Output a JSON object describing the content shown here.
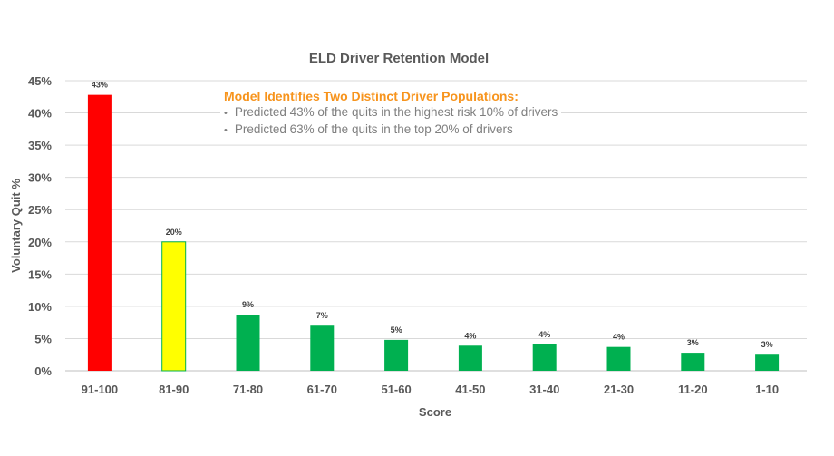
{
  "chart_data": {
    "type": "bar",
    "title": "ELD Driver Retention Model",
    "xlabel": "Score",
    "ylabel": "Voluntary Quit %",
    "categories": [
      "91-100",
      "81-90",
      "71-80",
      "61-70",
      "51-60",
      "41-50",
      "31-40",
      "21-30",
      "11-20",
      "1-10"
    ],
    "values": [
      42.8,
      20.0,
      8.7,
      7.0,
      4.8,
      3.9,
      4.1,
      3.7,
      2.8,
      2.5
    ],
    "data_labels": [
      "43%",
      "20%",
      "9%",
      "7%",
      "5%",
      "4%",
      "4%",
      "4%",
      "3%",
      "3%"
    ],
    "bar_colors": [
      "#ff0000",
      "#ffff00",
      "#00b050",
      "#00b050",
      "#00b050",
      "#00b050",
      "#00b050",
      "#00b050",
      "#00b050",
      "#00b050"
    ],
    "yticks": [
      "0%",
      "5%",
      "10%",
      "15%",
      "20%",
      "25%",
      "30%",
      "35%",
      "40%",
      "45%"
    ],
    "ylim": [
      0,
      45
    ],
    "grid": true,
    "annotation": {
      "heading": "Model Identifies Two Distinct Driver Populations:",
      "bullets": [
        "Predicted 43% of the quits in the highest risk 10% of drivers",
        "Predicted 63% of the quits in the top 20% of drivers"
      ],
      "heading_color": "#f7941d"
    }
  }
}
